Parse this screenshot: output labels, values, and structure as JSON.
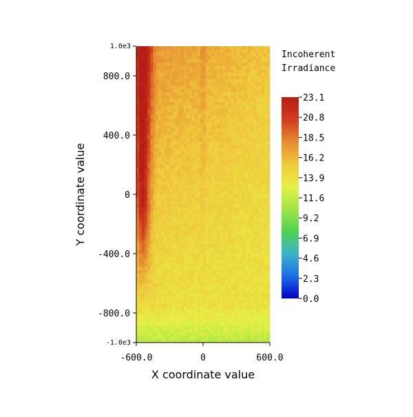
{
  "chart_data": {
    "type": "heatmap",
    "title": "",
    "xlabel": "X coordinate value",
    "ylabel": "Y coordinate value",
    "xlim": [
      -600,
      600
    ],
    "ylim": [
      -1000,
      1000
    ],
    "x_ticks": [
      {
        "value": -600,
        "label": "-600.0"
      },
      {
        "value": 0,
        "label": "0"
      },
      {
        "value": 600,
        "label": "600.0"
      }
    ],
    "y_ticks": [
      {
        "value": 1000,
        "label": "1.0e3",
        "small": true
      },
      {
        "value": 800,
        "label": "800.0"
      },
      {
        "value": 400,
        "label": "400.0"
      },
      {
        "value": 0,
        "label": "0"
      },
      {
        "value": -400,
        "label": "-400.0"
      },
      {
        "value": -800,
        "label": "-800.0"
      },
      {
        "value": -1000,
        "label": "-1.0e3",
        "small": true
      }
    ],
    "colorbar": {
      "title_lines": [
        "Incoherent",
        "Irradiance"
      ],
      "min": 0.0,
      "max": 23.1,
      "tick_labels": [
        "23.1",
        "20.8",
        "18.5",
        "16.2",
        "13.9",
        "11.6",
        "9.2",
        "6.9",
        "4.6",
        "2.3",
        "0.0"
      ],
      "colormap": [
        "#0000c8",
        "#1e6ee6",
        "#3cb4c8",
        "#50d250",
        "#a0e646",
        "#e6f046",
        "#f0c83c",
        "#e68c32",
        "#d23c1e",
        "#b41e14"
      ]
    },
    "field_description": {
      "value_range": [
        10.5,
        23.1
      ],
      "peak_x": -600,
      "notes": "Irradiance highest along left edge (x near -600, y from -600 to 1000, ~21-23), decreasing toward right and bottom; bottom rows near -1000 ~11-12."
    },
    "grid": false,
    "legend": "colorbar-right"
  }
}
